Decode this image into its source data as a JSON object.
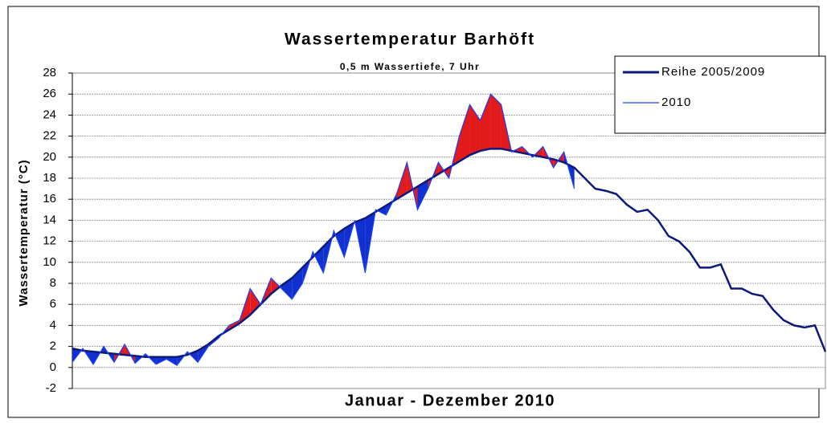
{
  "chart_data": {
    "type": "line",
    "title": "Wassertemperatur Barhöft",
    "subtitle": "0,5 m Wassertiefe, 7 Uhr",
    "y_label": "Wassertemperatur  (°C)",
    "x_label": "Januar - Dezember 2010",
    "ylim": [
      -2,
      28
    ],
    "yticks": [
      -2,
      0,
      2,
      4,
      6,
      8,
      10,
      12,
      14,
      16,
      18,
      20,
      22,
      24,
      26,
      28
    ],
    "grid": true,
    "legend": "top-right",
    "above_color": "#e31a1c",
    "below_color": "#1030d0",
    "series": [
      {
        "name": "Reihe 2005/2009",
        "color": "#0b1a7a",
        "values": [
          1.8,
          1.6,
          1.5,
          1.4,
          1.3,
          1.2,
          1.1,
          1.0,
          1.0,
          1.0,
          1.0,
          1.2,
          1.6,
          2.2,
          3.0,
          3.6,
          4.2,
          5.0,
          6.0,
          7.0,
          7.8,
          8.5,
          9.5,
          10.5,
          11.5,
          12.5,
          13.2,
          13.8,
          14.2,
          14.8,
          15.4,
          16.0,
          16.6,
          17.2,
          17.8,
          18.4,
          19.0,
          19.6,
          20.2,
          20.6,
          20.8,
          20.8,
          20.6,
          20.4,
          20.2,
          20.0,
          19.8,
          19.5,
          19.0,
          18.0,
          17.0,
          16.8,
          16.5,
          15.5,
          14.8,
          15.0,
          14.0,
          12.5,
          12.0,
          11.0,
          9.5,
          9.5,
          9.8,
          7.5,
          7.5,
          7.0,
          6.8,
          5.5,
          4.5,
          4.0,
          3.8,
          4.0,
          1.5
        ]
      },
      {
        "name": "2010",
        "color": "#1a3cff",
        "values": [
          0.5,
          1.8,
          0.3,
          2.0,
          0.5,
          2.2,
          0.4,
          1.3,
          0.3,
          0.8,
          0.2,
          1.5,
          0.5,
          2.0,
          2.8,
          4.0,
          4.5,
          7.5,
          6.0,
          8.5,
          7.5,
          6.5,
          8.0,
          11.0,
          9.0,
          13.0,
          10.5,
          14.0,
          9.0,
          15.0,
          14.5,
          16.5,
          19.5,
          15.0,
          17.0,
          19.5,
          18.0,
          22.0,
          25.0,
          23.5,
          26.0,
          25.0,
          20.5,
          21.0,
          20.0,
          21.0,
          19.0,
          20.5,
          17.0,
          null,
          null,
          null,
          null,
          null,
          null,
          null,
          null,
          null,
          null,
          null,
          null,
          null,
          null,
          null,
          null,
          null,
          null,
          null,
          null,
          null,
          null,
          null,
          null
        ]
      }
    ]
  }
}
